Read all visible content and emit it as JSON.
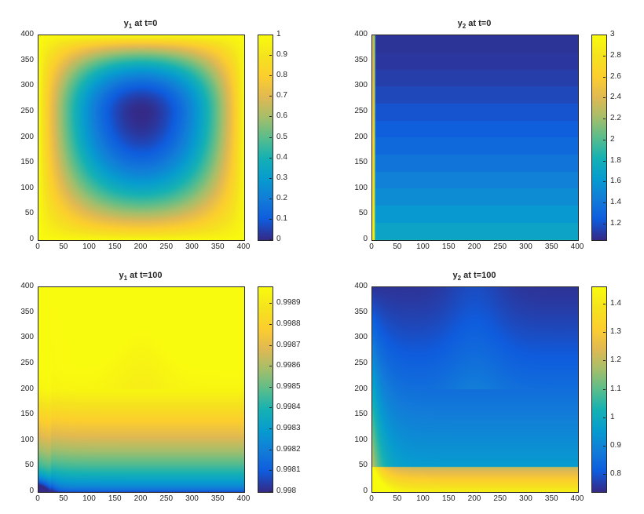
{
  "chart_data": [
    {
      "type": "heatmap",
      "title": {
        "var": "y",
        "sub": "1",
        "rest": " at t=0"
      },
      "xlim": [
        0,
        400
      ],
      "ylim": [
        0,
        400
      ],
      "xticks": [
        "0",
        "50",
        "100",
        "150",
        "200",
        "250",
        "300",
        "350",
        "400"
      ],
      "yticks": [
        "0",
        "50",
        "100",
        "150",
        "200",
        "250",
        "300",
        "350",
        "400"
      ],
      "clim": [
        0,
        1
      ],
      "cticks": [
        "0",
        "0.1",
        "0.2",
        "0.3",
        "0.4",
        "0.5",
        "0.6",
        "0.7",
        "0.8",
        "0.9",
        "1"
      ],
      "colormap": "parula",
      "field": "minimum near (200,250), rising to 1 at all edges"
    },
    {
      "type": "heatmap",
      "title": {
        "var": "y",
        "sub": "2",
        "rest": " at t=0"
      },
      "xlim": [
        0,
        400
      ],
      "ylim": [
        0,
        400
      ],
      "xticks": [
        "0",
        "50",
        "100",
        "150",
        "200",
        "250",
        "300",
        "350",
        "400"
      ],
      "yticks": [
        "0",
        "50",
        "100",
        "150",
        "200",
        "250",
        "300",
        "350",
        "400"
      ],
      "clim": [
        1.05,
        3
      ],
      "cticks": [
        "1.2",
        "1.4",
        "1.6",
        "1.8",
        "2",
        "2.2",
        "2.4",
        "2.6",
        "2.8",
        "3"
      ],
      "colormap": "parula",
      "field": "about 1.1 at top increasing to about 1.75 at bottom; left edge near 3"
    },
    {
      "type": "heatmap",
      "title": {
        "var": "y",
        "sub": "1",
        "rest": " at t=100"
      },
      "xlim": [
        0,
        400
      ],
      "ylim": [
        0,
        400
      ],
      "xticks": [
        "0",
        "50",
        "100",
        "150",
        "200",
        "250",
        "300",
        "350",
        "400"
      ],
      "yticks": [
        "0",
        "50",
        "100",
        "150",
        "200",
        "250",
        "300",
        "350",
        "400"
      ],
      "clim": [
        0.998,
        0.99898
      ],
      "cticks": [
        "0.998",
        "0.9981",
        "0.9982",
        "0.9983",
        "0.9984",
        "0.9985",
        "0.9986",
        "0.9987",
        "0.9988",
        "0.9989"
      ],
      "colormap": "parula",
      "field": "near 0.9990 at top, about 0.9987 mid, decreasing to about 0.9981 at bottom"
    },
    {
      "type": "heatmap",
      "title": {
        "var": "y",
        "sub": "2",
        "rest": " at t=100"
      },
      "xlim": [
        0,
        400
      ],
      "ylim": [
        0,
        400
      ],
      "xticks": [
        "0",
        "50",
        "100",
        "150",
        "200",
        "250",
        "300",
        "350",
        "400"
      ],
      "yticks": [
        "0",
        "50",
        "100",
        "150",
        "200",
        "250",
        "300",
        "350",
        "400"
      ],
      "clim": [
        0.74,
        1.46
      ],
      "cticks": [
        "0.8",
        "0.9",
        "1",
        "1.1",
        "1.2",
        "1.3",
        "1.4"
      ],
      "colormap": "parula",
      "field": "about 0.75 at top, about 0.9 mid, rising to about 1.4 in bottom band"
    }
  ]
}
